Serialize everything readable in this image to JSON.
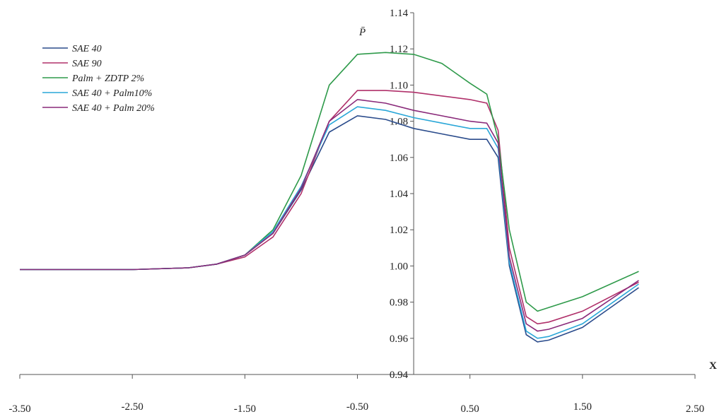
{
  "chart_data": {
    "type": "line",
    "y_label": "P̄",
    "x_label": "X",
    "xlim": [
      -3.5,
      2.5
    ],
    "ylim": [
      0.94,
      1.14
    ],
    "xticks": [
      {
        "value": -3.5,
        "label": "-3.50"
      },
      {
        "value": -2.5,
        "label": "-2.50"
      },
      {
        "value": -1.5,
        "label": "-1.50"
      },
      {
        "value": -0.5,
        "label": "-0.50"
      },
      {
        "value": 0.5,
        "label": "0.50"
      },
      {
        "value": 1.5,
        "label": "1.50"
      },
      {
        "value": 2.5,
        "label": "2.50"
      }
    ],
    "yticks": [
      0.94,
      0.96,
      0.98,
      {
        "value": 1.0,
        "label": "1.00"
      },
      1.02,
      1.04,
      1.06,
      1.08,
      {
        "value": 1.1,
        "label": "1.10"
      },
      1.12,
      1.14
    ],
    "grid": false,
    "legend": "top-left",
    "x": [
      -3.5,
      -2.5,
      -2.0,
      -1.75,
      -1.5,
      -1.25,
      -1.0,
      -0.75,
      -0.5,
      -0.25,
      0,
      0.25,
      0.5,
      0.65,
      0.75,
      0.85,
      1.0,
      1.1,
      1.2,
      1.5,
      2.0
    ],
    "series": [
      {
        "name": "SAE 40",
        "color": "#2b4c8c",
        "values": [
          0.998,
          0.998,
          0.999,
          1.001,
          1.006,
          1.018,
          1.042,
          1.074,
          1.083,
          1.081,
          1.076,
          1.073,
          1.07,
          1.07,
          1.06,
          1.0,
          0.962,
          0.958,
          0.959,
          0.966,
          0.988
        ]
      },
      {
        "name": "SAE 90",
        "color": "#b0306a",
        "values": [
          0.998,
          0.998,
          0.999,
          1.001,
          1.005,
          1.016,
          1.04,
          1.08,
          1.097,
          1.097,
          1.096,
          1.094,
          1.092,
          1.09,
          1.075,
          1.01,
          0.972,
          0.968,
          0.969,
          0.975,
          0.991
        ]
      },
      {
        "name": "Palm + ZDTP 2%",
        "color": "#2e9a4a",
        "values": [
          0.998,
          0.998,
          0.999,
          1.001,
          1.006,
          1.02,
          1.05,
          1.1,
          1.117,
          1.118,
          1.117,
          1.112,
          1.101,
          1.095,
          1.07,
          1.02,
          0.98,
          0.975,
          0.977,
          0.983,
          0.997
        ]
      },
      {
        "name": "SAE 40 + Palm10%",
        "color": "#2aa7d8",
        "values": [
          0.998,
          0.998,
          0.999,
          1.001,
          1.006,
          1.019,
          1.044,
          1.078,
          1.088,
          1.086,
          1.082,
          1.079,
          1.076,
          1.076,
          1.065,
          1.002,
          0.964,
          0.96,
          0.961,
          0.968,
          0.99
        ]
      },
      {
        "name": "SAE 40 + Palm 20%",
        "color": "#8a2a7a",
        "values": [
          0.998,
          0.998,
          0.999,
          1.001,
          1.006,
          1.018,
          1.043,
          1.08,
          1.092,
          1.09,
          1.086,
          1.083,
          1.08,
          1.079,
          1.068,
          1.005,
          0.968,
          0.964,
          0.965,
          0.971,
          0.992
        ]
      }
    ]
  }
}
